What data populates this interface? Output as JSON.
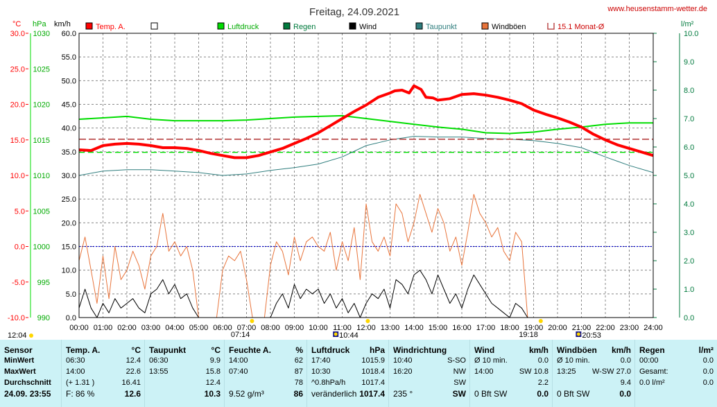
{
  "title": "Freitag, 24.09.2021",
  "website": "www.heusenstamm-wetter.de",
  "colors": {
    "temp": "#ff0000",
    "pressure": "#00dd00",
    "rain": "#007a3d",
    "wind": "#000000",
    "dewpoint": "#2e7d7d",
    "gust": "#e8743b",
    "monthly_avg": "#b03030",
    "frame": "#000000",
    "grid": "#888888",
    "panel": "#ccf2f6",
    "right_axis": "#007a3d"
  },
  "axes": {
    "temp_unit": "°C",
    "pressure_unit": "hPa",
    "wind_unit": "km/h",
    "rain_unit": "l/m²",
    "temp_ticks": [
      "30.0",
      "25.0",
      "20.0",
      "15.0",
      "10.0",
      "5.0",
      "0.0",
      "-5.0",
      "-10.0"
    ],
    "pressure_ticks": [
      "1030",
      "1025",
      "1020",
      "1015",
      "1010",
      "1005",
      "1000",
      "995",
      "990"
    ],
    "wind_ticks": [
      "60.0",
      "55.0",
      "50.0",
      "45.0",
      "40.0",
      "35.0",
      "30.0",
      "25.0",
      "20.0",
      "15.0",
      "10.0",
      "5.0",
      "0.0"
    ],
    "rain_ticks": [
      "10.0",
      "9.0",
      "8.0",
      "7.0",
      "6.0",
      "5.0",
      "4.0",
      "3.0",
      "2.0",
      "1.0",
      "0.0"
    ],
    "time_ticks": [
      "00:00",
      "01:00",
      "02:00",
      "03:00",
      "04:00",
      "05:00",
      "06:00",
      "07:00",
      "08:00",
      "09:00",
      "10:00",
      "11:00",
      "12:00",
      "13:00",
      "14:00",
      "15:00",
      "16:00",
      "17:00",
      "18:00",
      "19:00",
      "20:00",
      "21:00",
      "22:00",
      "23:00",
      "24:00"
    ],
    "markers": [
      {
        "label": "12:04",
        "time": 12.07,
        "kind": "sun"
      },
      {
        "label": "07:14",
        "time": 7.23,
        "kind": "sun"
      },
      {
        "label": "10:44",
        "time": 10.73,
        "kind": "moon"
      },
      {
        "label": "19:18",
        "time": 19.3,
        "kind": "sun"
      },
      {
        "label": "20:53",
        "time": 20.88,
        "kind": "moon"
      }
    ]
  },
  "legend": [
    {
      "label": "Temp. A.",
      "color": "#ff0000",
      "kind": "box"
    },
    {
      "label": "",
      "color": "#ffffff",
      "kind": "box"
    },
    {
      "label": "Luftdruck",
      "color": "#00dd00",
      "kind": "box"
    },
    {
      "label": "Regen",
      "color": "#007a3d",
      "kind": "box"
    },
    {
      "label": "Wind",
      "color": "#000000",
      "kind": "box"
    },
    {
      "label": "Taupunkt",
      "color": "#2e7d7d",
      "kind": "box"
    },
    {
      "label": "Windböen",
      "color": "#e8743b",
      "kind": "box"
    },
    {
      "label": "15.1 Monat-Ø",
      "color": "#b03030",
      "kind": "bracket"
    }
  ],
  "chart_data": {
    "type": "line",
    "x_unit": "hour",
    "xlim": [
      0,
      24
    ],
    "temp_ylim": [
      -10,
      30
    ],
    "wind_ylim": [
      0,
      60
    ],
    "rain_ylim": [
      0,
      10
    ],
    "series": [
      {
        "name": "Temp. A.",
        "axis": "temp",
        "x": [
          0,
          0.5,
          1,
          1.5,
          2,
          2.5,
          3,
          3.5,
          4,
          4.5,
          5,
          5.5,
          6,
          6.5,
          7,
          7.5,
          8,
          8.5,
          9,
          9.5,
          10,
          10.5,
          11,
          11.5,
          12,
          12.5,
          13,
          13.2,
          13.5,
          13.8,
          14,
          14.3,
          14.5,
          14.8,
          15,
          15.5,
          16,
          16.5,
          17,
          17.5,
          18,
          18.5,
          19,
          19.5,
          20,
          20.5,
          21,
          21.5,
          22,
          22.5,
          23,
          23.5,
          24
        ],
        "y": [
          13.6,
          13.5,
          14.2,
          14.4,
          14.5,
          14.4,
          14.2,
          13.9,
          13.9,
          13.8,
          13.5,
          13.1,
          12.8,
          12.5,
          12.5,
          12.8,
          13.3,
          13.8,
          14.5,
          15.2,
          16.0,
          17.0,
          18.0,
          19.0,
          19.9,
          21.0,
          21.6,
          21.9,
          22.0,
          21.6,
          22.6,
          22.1,
          21.0,
          20.9,
          20.6,
          20.8,
          21.4,
          21.5,
          21.3,
          21.0,
          20.6,
          20.1,
          19.2,
          18.6,
          18.1,
          17.5,
          16.8,
          15.8,
          15.0,
          14.3,
          13.8,
          13.3,
          12.8
        ]
      },
      {
        "name": "Luftdruck",
        "axis": "pressure",
        "unit": "hPa",
        "x": [
          0,
          1,
          2,
          3,
          4,
          5,
          6,
          7,
          8,
          9,
          10,
          11,
          12,
          13,
          14,
          15,
          16,
          17,
          18,
          19,
          20,
          21,
          22,
          23,
          24
        ],
        "y": [
          1017.9,
          1018.1,
          1018.3,
          1017.9,
          1017.7,
          1017.7,
          1017.7,
          1017.8,
          1018.0,
          1018.2,
          1018.3,
          1018.4,
          1018.0,
          1017.6,
          1017.2,
          1016.8,
          1016.5,
          1016.0,
          1015.9,
          1016.1,
          1016.5,
          1016.8,
          1017.2,
          1017.4,
          1017.4
        ]
      },
      {
        "name": "Taupunkt",
        "axis": "temp",
        "x": [
          0,
          1,
          2,
          3,
          4,
          5,
          6,
          7,
          8,
          9,
          10,
          11,
          12,
          13,
          14,
          15,
          16,
          17,
          18,
          19,
          20,
          21,
          22,
          23,
          24
        ],
        "y": [
          10.0,
          10.6,
          10.8,
          10.8,
          10.6,
          10.4,
          10.0,
          10.2,
          10.7,
          11.1,
          11.6,
          12.6,
          14.2,
          15.0,
          15.5,
          15.4,
          15.4,
          15.2,
          15.1,
          14.9,
          14.5,
          13.9,
          12.6,
          11.4,
          10.4
        ]
      },
      {
        "name": "Windböen",
        "axis": "wind",
        "x": [
          0,
          0.25,
          0.5,
          0.75,
          1,
          1.25,
          1.5,
          1.75,
          2,
          2.25,
          2.5,
          2.75,
          3,
          3.25,
          3.5,
          3.75,
          4,
          4.25,
          4.5,
          4.75,
          5,
          5.25,
          5.5,
          5.75,
          6,
          6.25,
          6.5,
          6.75,
          7,
          7.25,
          7.5,
          7.75,
          8,
          8.25,
          8.5,
          8.75,
          9,
          9.25,
          9.5,
          9.75,
          10,
          10.25,
          10.5,
          10.75,
          11,
          11.25,
          11.5,
          11.75,
          12,
          12.25,
          12.5,
          12.75,
          13,
          13.25,
          13.5,
          13.75,
          14,
          14.25,
          14.5,
          14.75,
          15,
          15.25,
          15.5,
          15.75,
          16,
          16.25,
          16.5,
          16.75,
          17,
          17.25,
          17.5,
          17.75,
          18,
          18.25,
          18.5,
          18.75,
          19
        ],
        "y": [
          12,
          17,
          10,
          3,
          13,
          4,
          15,
          8,
          10,
          14,
          11,
          6,
          13,
          15,
          22,
          14,
          16,
          13,
          15,
          10,
          0,
          0,
          0,
          0,
          10,
          13,
          12,
          14,
          8,
          0,
          0,
          0,
          11,
          16,
          14,
          9,
          17,
          12,
          16,
          17,
          15,
          14,
          18,
          10,
          16,
          12,
          19,
          8,
          24,
          16,
          14,
          17,
          13,
          24,
          22,
          16,
          20,
          26,
          22,
          18,
          23,
          20,
          14,
          17,
          11,
          18,
          26,
          22,
          20,
          17,
          19,
          14,
          12,
          18,
          16,
          0,
          0
        ]
      },
      {
        "name": "Wind",
        "axis": "wind",
        "x": [
          0,
          0.25,
          0.5,
          0.75,
          1,
          1.25,
          1.5,
          1.75,
          2,
          2.25,
          2.5,
          2.75,
          3,
          3.25,
          3.5,
          3.75,
          4,
          4.25,
          4.5,
          4.75,
          5,
          5.25,
          5.5,
          5.75,
          6,
          6.25,
          6.5,
          6.75,
          7,
          7.25,
          7.5,
          7.75,
          8,
          8.25,
          8.5,
          8.75,
          9,
          9.25,
          9.5,
          9.75,
          10,
          10.25,
          10.5,
          10.75,
          11,
          11.25,
          11.5,
          11.75,
          12,
          12.25,
          12.5,
          12.75,
          13,
          13.25,
          13.5,
          13.75,
          14,
          14.25,
          14.5,
          14.75,
          15,
          15.25,
          15.5,
          15.75,
          16,
          16.25,
          16.5,
          16.75,
          17,
          17.25,
          17.5,
          17.75,
          18,
          18.25,
          18.5,
          18.75,
          19
        ],
        "y": [
          2,
          6,
          2,
          0,
          3,
          1,
          4,
          2,
          3,
          4,
          2,
          1,
          5,
          6,
          8,
          5,
          7,
          4,
          5,
          2,
          0,
          0,
          0,
          0,
          0,
          0,
          0,
          0,
          0,
          0,
          0,
          0,
          0,
          3,
          5,
          2,
          7,
          4,
          6,
          5,
          6,
          3,
          5,
          2,
          4,
          1,
          3,
          0,
          3,
          5,
          4,
          6,
          2,
          8,
          7,
          5,
          9,
          10,
          8,
          5,
          9,
          6,
          3,
          5,
          2,
          6,
          9,
          7,
          5,
          3,
          2,
          1,
          0,
          3,
          2,
          0,
          0
        ]
      },
      {
        "name": "15.1 Monat-Ø",
        "axis": "temp",
        "x": [
          0,
          24
        ],
        "y": [
          15.1,
          15.1
        ]
      }
    ],
    "reference_lines": [
      {
        "axis": "temp",
        "value": 0.0,
        "style": "dotted",
        "color": "#0000cc"
      },
      {
        "axis": "pressure",
        "value": 1013.25,
        "style": "dashed",
        "color": "#00dd00"
      }
    ]
  },
  "panel": {
    "row_labels": {
      "header": "Sensor",
      "min": "MinWert",
      "max": "MaxWert",
      "avg": "Durchschnitt",
      "date": "24.09. 23:55"
    },
    "columns": [
      {
        "title": "Temp. A.",
        "unit": "°C",
        "r1": [
          "06:30",
          "12.4"
        ],
        "r2": [
          "14:00",
          "22.6"
        ],
        "r3": [
          "(+ 1.31 )",
          "16.41"
        ],
        "r4": [
          "F: 86 %",
          "12.6"
        ]
      },
      {
        "title": "Taupunkt",
        "unit": "°C",
        "r1": [
          "06:30",
          "9.9"
        ],
        "r2": [
          "13:55",
          "15.8"
        ],
        "r3": [
          "",
          "12.4"
        ],
        "r4": [
          "",
          "10.3"
        ]
      },
      {
        "title": "Feuchte A.",
        "unit": "%",
        "r1": [
          "14:00",
          "62"
        ],
        "r2": [
          "07:40",
          "87"
        ],
        "r3": [
          "",
          "78"
        ],
        "r4": [
          "9.52 g/m³",
          "86"
        ]
      },
      {
        "title": "Luftdruck",
        "unit": "hPa",
        "r1": [
          "17:40",
          "1015.9"
        ],
        "r2": [
          "10:30",
          "1018.4"
        ],
        "r3": [
          "^0.8hPa/h",
          "1017.4"
        ],
        "r4": [
          "veränderlich",
          "1017.4"
        ]
      },
      {
        "title": "Windrichtung",
        "unit": "",
        "r1": [
          "10:40",
          "S-SO"
        ],
        "r2": [
          "16:20",
          "NW"
        ],
        "r3": [
          "",
          "SW"
        ],
        "r4": [
          "235 °",
          "SW"
        ]
      },
      {
        "title": "Wind",
        "unit": "km/h",
        "r1": [
          "Ø 10 min.",
          "0.0"
        ],
        "r2": [
          "14:00",
          "SW 10.8"
        ],
        "r3": [
          "",
          "2.2"
        ],
        "r4": [
          "0 Bft SW",
          "0.0"
        ]
      },
      {
        "title": "Windböen",
        "unit": "km/h",
        "r1": [
          "Ø 10 min.",
          "0.0"
        ],
        "r2": [
          "13:25",
          "W-SW 27.0"
        ],
        "r3": [
          "",
          "9.4"
        ],
        "r4": [
          "0 Bft SW",
          "0.0"
        ]
      },
      {
        "title": "Regen",
        "unit": "l/m²",
        "r1": [
          "00:00",
          "0.0"
        ],
        "r2": [
          "Gesamt:",
          "0.0"
        ],
        "r3": [
          "0.0 l/m²",
          "0.0"
        ],
        "r4": [
          "",
          ""
        ]
      }
    ]
  }
}
